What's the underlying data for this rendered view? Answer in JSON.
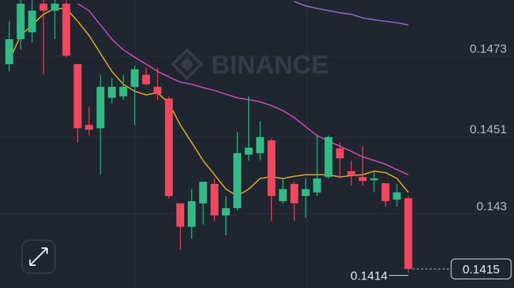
{
  "chart_data": {
    "type": "candlestick",
    "watermark": "BINANCE",
    "up_color": "#2ebd85",
    "down_color": "#f6465d",
    "open": [
      0.14709,
      0.14777,
      0.14796,
      0.14874,
      0.14855,
      0.14874,
      0.14709,
      0.14543,
      0.14534,
      0.14617,
      0.14621,
      0.14647,
      0.1468,
      0.14647,
      0.14615,
      0.14329,
      0.14265,
      0.14329,
      0.14382,
      0.14296,
      0.14316,
      0.14462,
      0.14466,
      0.14501,
      0.14335,
      0.14382,
      0.14349,
      0.14359,
      0.14401,
      0.14479,
      0.14417,
      0.14401,
      0.14392,
      0.14384,
      0.14339,
      0.14343
    ],
    "high": [
      0.14826,
      0.14884,
      0.14884,
      0.14884,
      0.14884,
      0.14884,
      0.14709,
      0.14592,
      0.1468,
      0.1467,
      0.1468,
      0.14705,
      0.14699,
      0.14699,
      0.14621,
      0.14329,
      0.14368,
      0.14388,
      0.14397,
      0.14349,
      0.14524,
      0.14621,
      0.14553,
      0.14505,
      0.14397,
      0.14388,
      0.14397,
      0.14514,
      0.14514,
      0.14495,
      0.14446,
      0.14485,
      0.14417,
      0.14384,
      0.14382,
      0.14349
    ],
    "low": [
      0.14689,
      0.14748,
      0.14768,
      0.1468,
      0.14777,
      0.14728,
      0.14495,
      0.14514,
      0.14407,
      0.14602,
      0.14612,
      0.14543,
      0.14651,
      0.14612,
      0.14343,
      0.14203,
      0.14232,
      0.14271,
      0.14281,
      0.14242,
      0.1431,
      0.14446,
      0.14446,
      0.14281,
      0.14329,
      0.14281,
      0.1429,
      0.14349,
      0.14397,
      0.14397,
      0.14378,
      0.14378,
      0.14359,
      0.1432,
      0.1432,
      0.1414
    ],
    "close": [
      0.14777,
      0.14874,
      0.14855,
      0.14855,
      0.14874,
      0.14732,
      0.14534,
      0.1453,
      0.14647,
      0.14647,
      0.14647,
      0.14695,
      0.14654,
      0.14627,
      0.14349,
      0.14265,
      0.14335,
      0.14388,
      0.14296,
      0.14316,
      0.14466,
      0.14481,
      0.1451,
      0.14349,
      0.14368,
      0.14329,
      0.14368,
      0.14397,
      0.1451,
      0.14452,
      0.14405,
      0.1439,
      0.14397,
      0.14335,
      0.14359,
      0.1415
    ],
    "series": [
      {
        "color": "#f0b90b",
        "values": [
          0.14719,
          0.14787,
          0.14816,
          0.14845,
          0.14861,
          0.14861,
          0.14826,
          0.14787,
          0.14738,
          0.14689,
          0.14654,
          0.14635,
          0.14625,
          0.14631,
          0.14602,
          0.14543,
          0.14495,
          0.14446,
          0.14407,
          0.14368,
          0.14349,
          0.14368,
          0.14397,
          0.14401,
          0.14397,
          0.14403,
          0.14407,
          0.14407,
          0.14407,
          0.14401,
          0.14405,
          0.14407,
          0.14417,
          0.14413,
          0.14397,
          0.14359
        ]
      },
      {
        "color": "#d54fc4",
        "values": [
          null,
          null,
          null,
          null,
          null,
          null,
          0.14874,
          0.14855,
          0.14816,
          0.14777,
          0.14748,
          0.14728,
          0.14709,
          0.14689,
          0.14674,
          0.1466,
          0.14654,
          0.14645,
          0.14637,
          0.14627,
          0.14617,
          0.14612,
          0.14606,
          0.14596,
          0.14582,
          0.14563,
          0.14538,
          0.14514,
          0.14499,
          0.14485,
          0.14471,
          0.14456,
          0.14446,
          0.14436,
          0.14421,
          0.14407
        ]
      },
      {
        "color": "#9a6fdc",
        "values": [
          null,
          null,
          null,
          null,
          null,
          null,
          null,
          null,
          null,
          null,
          null,
          null,
          null,
          null,
          null,
          null,
          null,
          null,
          null,
          null,
          null,
          null,
          null,
          null,
          null,
          0.1488,
          0.14868,
          0.14861,
          0.14855,
          0.14849,
          0.14845,
          0.14835,
          0.1483,
          0.14826,
          0.14822,
          0.14816
        ]
      }
    ],
    "ylim": [
      0.14098,
      0.14884
    ],
    "yticks": [
      0.143,
      0.1451,
      0.1473
    ],
    "grid": true
  }
}
